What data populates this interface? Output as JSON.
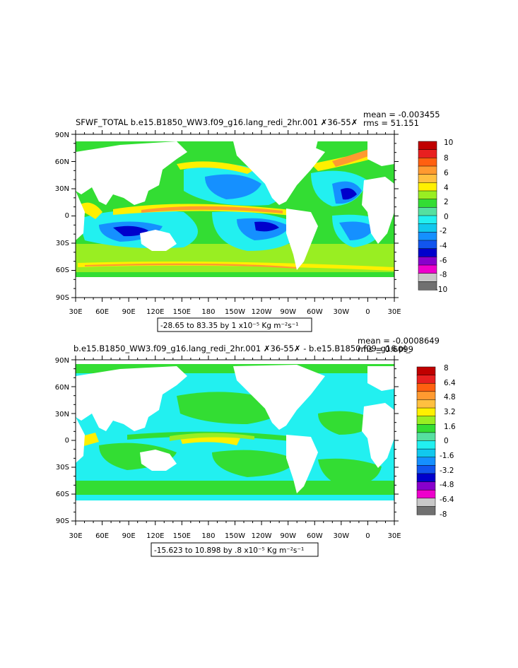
{
  "panels": [
    {
      "title": "SFWF_TOTAL b.e15.B1850_WW3.f09_g16.lang_redi_2hr.001 ✗36-55✗",
      "stats": {
        "mean": "mean = -0.003455",
        "rms": "rms = 51.151"
      },
      "lat_labels": [
        "90N",
        "60N",
        "30N",
        "0",
        "30S",
        "60S",
        "90S"
      ],
      "lon_labels": [
        "30E",
        "60E",
        "90E",
        "120E",
        "150E",
        "180",
        "150W",
        "120W",
        "90W",
        "60W",
        "30W",
        "0",
        "30E"
      ],
      "colorbar": {
        "labels": [
          "10",
          "8",
          "6",
          "4",
          "2",
          "0",
          "-2",
          "-4",
          "-6",
          "-8",
          "-10"
        ],
        "colors": [
          "#c00000",
          "#e82020",
          "#ff6010",
          "#ff9a30",
          "#ffc040",
          "#fff000",
          "#99ee22",
          "#33dd33",
          "#55e0a0",
          "#22f0f0",
          "#11c8ee",
          "#1590ff",
          "#1155ee",
          "#0000cc",
          "#8800cc",
          "#ee00cc",
          "#c8c8c8",
          "#707070"
        ]
      },
      "caption": "-28.65 to 83.35 by 1 x10⁻⁵ Kg m⁻²s⁻¹"
    },
    {
      "title": "b.e15.B1850_WW3.f09_g16.lang_redi_2hr.001 ✗36-55✗ - b.e15.B1850.f09_g16.pi_",
      "stats": {
        "mean": "mean = -0.0008649",
        "rms": "rms = 0.6099"
      },
      "lat_labels": [
        "90N",
        "60N",
        "30N",
        "0",
        "30S",
        "60S",
        "90S"
      ],
      "lon_labels": [
        "30E",
        "60E",
        "90E",
        "120E",
        "150E",
        "180",
        "150W",
        "120W",
        "90W",
        "60W",
        "30W",
        "0",
        "30E"
      ],
      "colorbar": {
        "labels": [
          "8",
          "6.4",
          "4.8",
          "3.2",
          "1.6",
          "0",
          "-1.6",
          "-3.2",
          "-4.8",
          "-6.4",
          "-8"
        ],
        "colors": [
          "#c00000",
          "#e82020",
          "#ff6010",
          "#ff9a30",
          "#ffc040",
          "#fff000",
          "#99ee22",
          "#33dd33",
          "#55e0a0",
          "#22f0f0",
          "#11c8ee",
          "#1590ff",
          "#1155ee",
          "#0000cc",
          "#8800cc",
          "#ee00cc",
          "#c8c8c8",
          "#707070"
        ]
      },
      "caption": "-15.623 to 10.898 by .8 x10⁻⁵ Kg m⁻²s⁻¹"
    }
  ],
  "field_colors": {
    "land": "#ffffff",
    "yellow": "#fff000",
    "green": "#33dd33",
    "lightgreen": "#99ee22",
    "cyan": "#22f0f0",
    "lightblue": "#11c8ee",
    "blue": "#1590ff",
    "darkblue": "#0000cc",
    "orange": "#ff9a30",
    "red": "#c00000",
    "purple": "#8800cc"
  }
}
